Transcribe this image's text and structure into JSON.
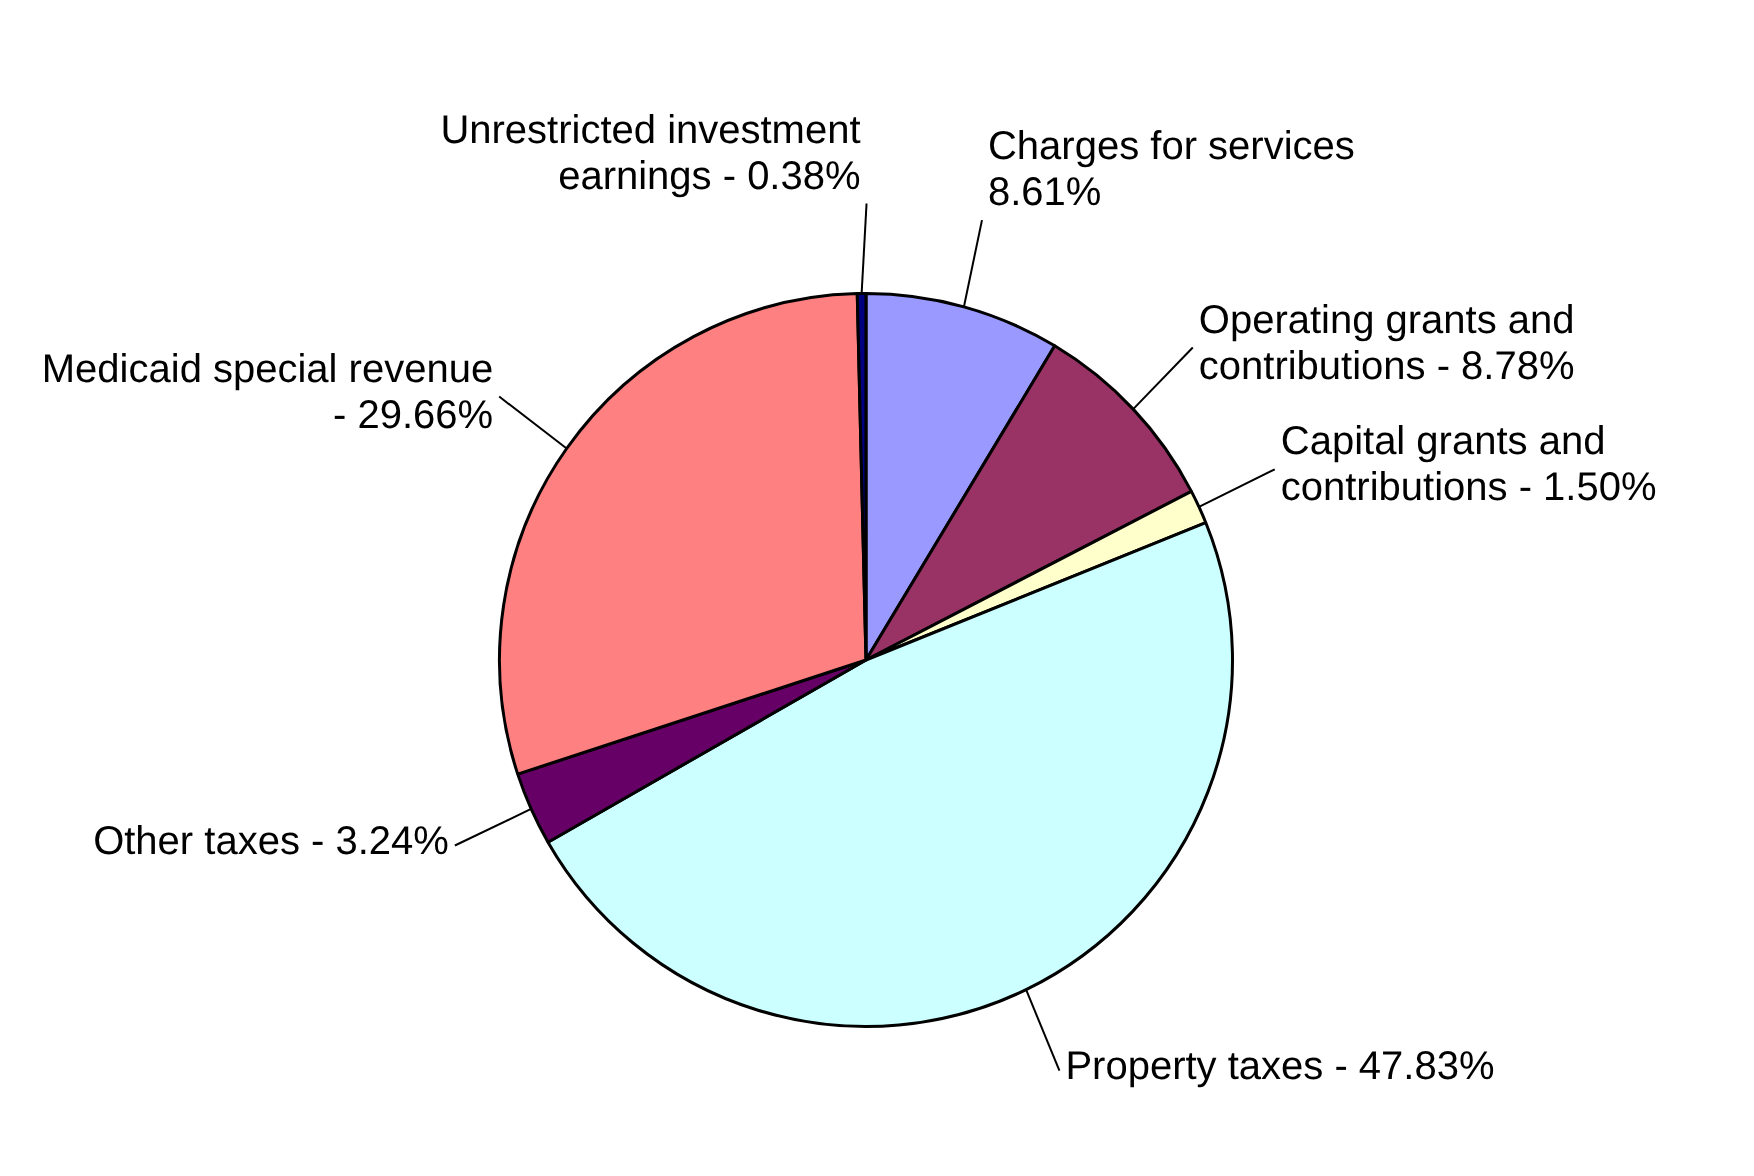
{
  "chart_data": {
    "type": "pie",
    "categories": [
      "Charges for services",
      "Operating grants and contributions -",
      "Capital grants and contributions -",
      "Property taxes -",
      "Other taxes -",
      "Medicaid special revenue -",
      "Unrestricted investment earnings -"
    ],
    "values": [
      8.61,
      8.78,
      1.5,
      47.83,
      3.24,
      29.66,
      0.38
    ],
    "colors": [
      "#9999ff",
      "#993366",
      "#ffffcc",
      "#ccffff",
      "#660066",
      "#ff8080",
      "#000080"
    ],
    "value_labels": [
      "8.61%",
      "8.78%",
      "1.50%",
      "47.83%",
      "3.24%",
      "29.66%",
      "0.38%"
    ],
    "legend": false
  }
}
